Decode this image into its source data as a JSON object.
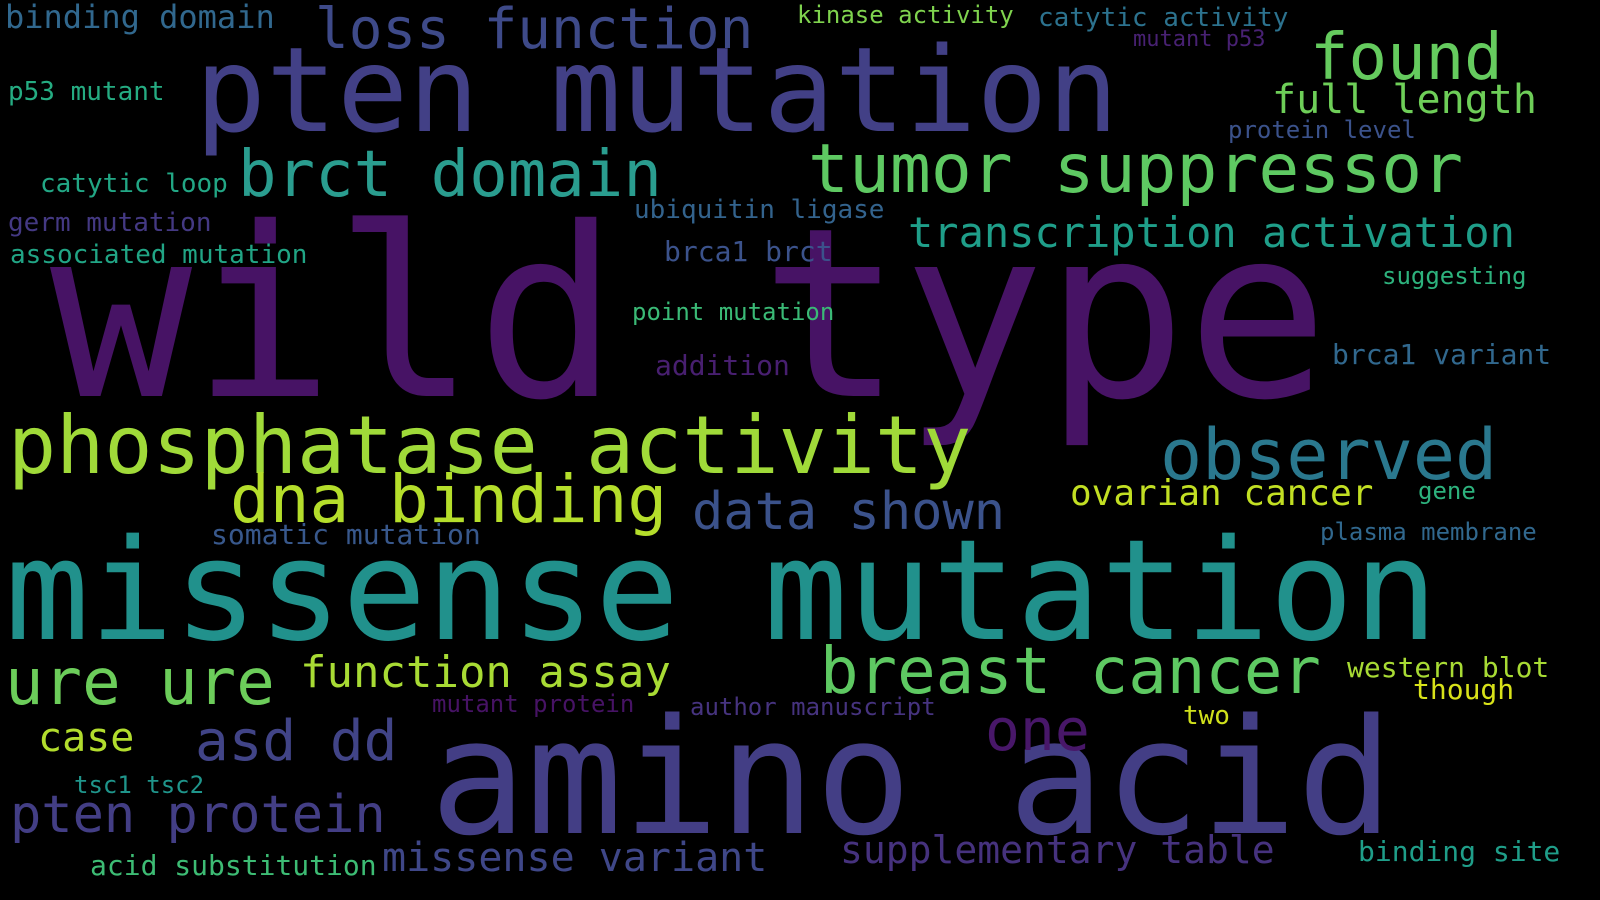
{
  "background": "#000000",
  "words": [
    {
      "text": "wild type",
      "color": "#471365"
    },
    {
      "text": "missense mutation",
      "color": "#21918c"
    },
    {
      "text": "amino acid",
      "color": "#433e85"
    },
    {
      "text": "pten mutation",
      "color": "#424086"
    },
    {
      "text": "tumor suppressor",
      "color": "#5ec962"
    },
    {
      "text": "phosphatase activity",
      "color": "#a0da39"
    },
    {
      "text": "brct domain",
      "color": "#2a9d8f"
    },
    {
      "text": "dna binding",
      "color": "#b5de2b"
    },
    {
      "text": "observed",
      "color": "#2a788e"
    },
    {
      "text": "breast cancer",
      "color": "#5ec962"
    },
    {
      "text": "ure ure",
      "color": "#6ccd5a"
    },
    {
      "text": "loss function",
      "color": "#3e4a89"
    },
    {
      "text": "found",
      "color": "#65cb5e"
    },
    {
      "text": "data shown",
      "color": "#3b528b"
    },
    {
      "text": "asd dd",
      "color": "#414487"
    },
    {
      "text": "pten protein",
      "color": "#433e85"
    },
    {
      "text": "one",
      "color": "#481769"
    },
    {
      "text": "function assay",
      "color": "#a8db34"
    },
    {
      "text": "transcription activation",
      "color": "#1f9e89"
    },
    {
      "text": "missense variant",
      "color": "#3f4788"
    },
    {
      "text": "supplementary table",
      "color": "#46327e"
    },
    {
      "text": "full length",
      "color": "#6ece58"
    },
    {
      "text": "ovarian cancer",
      "color": "#c2df23"
    },
    {
      "text": "case",
      "color": "#b2dd2d"
    },
    {
      "text": "binding domain",
      "color": "#31688e"
    },
    {
      "text": "catytic activity",
      "color": "#2c728e"
    },
    {
      "text": "kinase activity",
      "color": "#7fd34e"
    },
    {
      "text": "mutant p53",
      "color": "#482173"
    },
    {
      "text": "p53 mutant",
      "color": "#25ac82"
    },
    {
      "text": "protein level",
      "color": "#3b528b"
    },
    {
      "text": "catytic loop",
      "color": "#22a785"
    },
    {
      "text": "germ mutation",
      "color": "#443983"
    },
    {
      "text": "ubiquitin ligase",
      "color": "#33638d"
    },
    {
      "text": "associated mutation",
      "color": "#21a585"
    },
    {
      "text": "brca1 brct",
      "color": "#3b528b"
    },
    {
      "text": "suggesting",
      "color": "#2db27d"
    },
    {
      "text": "point mutation",
      "color": "#3aba76"
    },
    {
      "text": "addition",
      "color": "#481f70"
    },
    {
      "text": "brca1 variant",
      "color": "#31688e"
    },
    {
      "text": "gene",
      "color": "#2db27d"
    },
    {
      "text": "somatic mutation",
      "color": "#38588c"
    },
    {
      "text": "plasma membrane",
      "color": "#31688e"
    },
    {
      "text": "western blot",
      "color": "#a8db34"
    },
    {
      "text": "though",
      "color": "#d8e219"
    },
    {
      "text": "mutant protein",
      "color": "#471365"
    },
    {
      "text": "author manuscript",
      "color": "#46337f"
    },
    {
      "text": "two",
      "color": "#d0e11c"
    },
    {
      "text": "tsc1 tsc2",
      "color": "#1f958b"
    },
    {
      "text": "acid substitution",
      "color": "#3dbc74"
    },
    {
      "text": "binding site",
      "color": "#1f9e89"
    }
  ]
}
